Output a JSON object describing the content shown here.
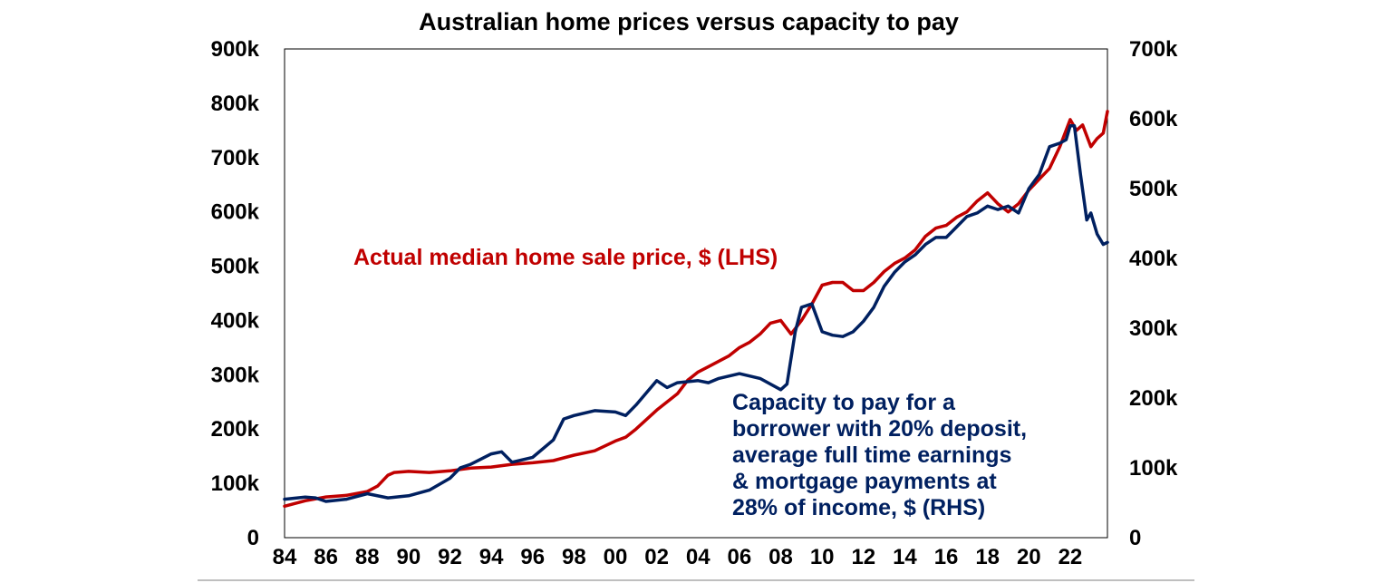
{
  "chart_data": {
    "type": "line",
    "title": "Australian home prices versus capacity to pay",
    "x_ticks": [
      "84",
      "86",
      "88",
      "90",
      "92",
      "94",
      "96",
      "98",
      "00",
      "02",
      "04",
      "06",
      "08",
      "10",
      "12",
      "14",
      "16",
      "18",
      "20",
      "22"
    ],
    "x_range": [
      1984,
      2023.8
    ],
    "y_left": {
      "min": 0,
      "max": 900000,
      "ticks": [
        "0",
        "100k",
        "200k",
        "300k",
        "400k",
        "500k",
        "600k",
        "700k",
        "800k",
        "900k"
      ]
    },
    "y_right": {
      "min": 0,
      "max": 700000,
      "ticks": [
        "0",
        "100k",
        "200k",
        "300k",
        "400k",
        "500k",
        "600k",
        "700k"
      ]
    },
    "grid": false,
    "series": [
      {
        "name": "Actual median home sale price, $ (LHS)",
        "axis": "left",
        "color": "#c00000",
        "x": [
          1984.0,
          1985.0,
          1986.0,
          1987.0,
          1988.0,
          1988.5,
          1989.0,
          1989.3,
          1990.0,
          1991.0,
          1992.0,
          1993.0,
          1994.0,
          1995.0,
          1996.0,
          1997.0,
          1998.0,
          1999.0,
          2000.0,
          2000.5,
          2001.0,
          2002.0,
          2003.0,
          2003.5,
          2004.0,
          2004.5,
          2005.0,
          2005.5,
          2006.0,
          2006.5,
          2007.0,
          2007.5,
          2008.0,
          2008.5,
          2009.0,
          2009.5,
          2010.0,
          2010.5,
          2011.0,
          2011.5,
          2012.0,
          2012.5,
          2013.0,
          2013.5,
          2014.0,
          2014.5,
          2015.0,
          2015.5,
          2016.0,
          2016.5,
          2017.0,
          2017.5,
          2018.0,
          2018.5,
          2019.0,
          2019.5,
          2020.0,
          2020.5,
          2021.0,
          2021.5,
          2022.0,
          2022.3,
          2022.6,
          2023.0,
          2023.3,
          2023.6,
          2023.8
        ],
        "values": [
          58000,
          68000,
          75000,
          78000,
          85000,
          95000,
          115000,
          120000,
          122000,
          120000,
          123000,
          128000,
          130000,
          135000,
          138000,
          142000,
          152000,
          160000,
          178000,
          185000,
          200000,
          235000,
          265000,
          290000,
          305000,
          315000,
          325000,
          335000,
          350000,
          360000,
          375000,
          395000,
          400000,
          375000,
          400000,
          430000,
          465000,
          470000,
          470000,
          455000,
          455000,
          470000,
          490000,
          505000,
          515000,
          530000,
          555000,
          570000,
          575000,
          590000,
          600000,
          620000,
          635000,
          615000,
          600000,
          615000,
          640000,
          660000,
          680000,
          720000,
          770000,
          750000,
          760000,
          720000,
          735000,
          745000,
          785000
        ]
      },
      {
        "name": "Capacity to pay for a borrower with 20% deposit, average full time earnings & mortgage payments at 28% of income, $ (RHS)",
        "axis": "right",
        "color": "#002060",
        "x": [
          1984.0,
          1985.0,
          1985.5,
          1986.0,
          1987.0,
          1988.0,
          1989.0,
          1990.0,
          1991.0,
          1992.0,
          1992.5,
          1993.0,
          1994.0,
          1994.5,
          1995.0,
          1996.0,
          1997.0,
          1997.5,
          1998.0,
          1999.0,
          2000.0,
          2000.5,
          2001.0,
          2002.0,
          2002.5,
          2003.0,
          2004.0,
          2004.5,
          2005.0,
          2006.0,
          2007.0,
          2008.0,
          2008.3,
          2008.7,
          2009.0,
          2009.5,
          2010.0,
          2010.5,
          2011.0,
          2011.5,
          2012.0,
          2012.5,
          2013.0,
          2013.5,
          2014.0,
          2014.5,
          2015.0,
          2015.5,
          2016.0,
          2016.5,
          2017.0,
          2017.5,
          2018.0,
          2018.5,
          2019.0,
          2019.5,
          2020.0,
          2020.5,
          2021.0,
          2021.5,
          2021.8,
          2022.0,
          2022.2,
          2022.5,
          2022.8,
          2023.0,
          2023.3,
          2023.6,
          2023.8
        ],
        "values": [
          55000,
          58000,
          57000,
          52000,
          55000,
          63000,
          57000,
          60000,
          68000,
          85000,
          100000,
          105000,
          120000,
          123000,
          108000,
          115000,
          140000,
          170000,
          175000,
          182000,
          180000,
          175000,
          190000,
          225000,
          215000,
          222000,
          225000,
          222000,
          228000,
          235000,
          228000,
          212000,
          220000,
          295000,
          330000,
          335000,
          295000,
          290000,
          288000,
          295000,
          310000,
          330000,
          360000,
          380000,
          395000,
          405000,
          420000,
          430000,
          430000,
          445000,
          460000,
          465000,
          475000,
          470000,
          475000,
          465000,
          500000,
          520000,
          560000,
          565000,
          570000,
          590000,
          590000,
          520000,
          455000,
          465000,
          435000,
          420000,
          423000
        ]
      }
    ],
    "annotations": [
      {
        "series": 0,
        "lines": [
          "Actual median home sale price, $ (LHS)"
        ]
      },
      {
        "series": 1,
        "lines": [
          "Capacity to pay for a",
          "borrower with 20% deposit,",
          "average full time earnings",
          "& mortgage payments at",
          "28% of income, $ (RHS)"
        ]
      }
    ]
  }
}
